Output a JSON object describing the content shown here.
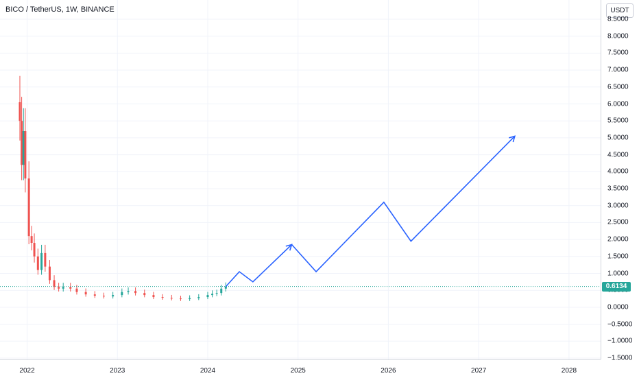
{
  "title": "BICO / TetherUS, 1W, BINANCE",
  "currency_button": "USDT",
  "last_price": "0.6134",
  "colors": {
    "up": "#26a69a",
    "down": "#ef5350",
    "projection": "#2962ff",
    "grid": "#f0f3fa",
    "price_line": "#26a69a"
  },
  "chart_data": {
    "type": "line",
    "title": "BICO / TetherUS, 1W, BINANCE",
    "ylim": [
      -1.5,
      8.5
    ],
    "y_ticks": [
      "8.5000",
      "8.0000",
      "7.5000",
      "7.0000",
      "6.5000",
      "6.0000",
      "5.5000",
      "5.0000",
      "4.5000",
      "4.0000",
      "3.5000",
      "3.0000",
      "2.5000",
      "2.0000",
      "1.5000",
      "1.0000",
      "0.5000",
      "0.0000",
      "−0.5000",
      "−1.0000",
      "−1.5000"
    ],
    "y_tick_values": [
      8.5,
      8.0,
      7.5,
      7.0,
      6.5,
      6.0,
      5.5,
      5.0,
      4.5,
      4.0,
      3.5,
      3.0,
      2.5,
      2.0,
      1.5,
      1.0,
      0.5,
      0.0,
      -0.5,
      -1.0,
      -1.5
    ],
    "x_ticks": [
      "2022",
      "2023",
      "2024",
      "2025",
      "2026",
      "2027",
      "2028"
    ],
    "x_tick_values": [
      2022.0,
      2023.0,
      2024.0,
      2025.0,
      2026.0,
      2027.0,
      2028.0
    ],
    "xlim": [
      2021.7,
      2028.35
    ],
    "last_price": 0.6134,
    "price_series": {
      "name": "",
      "x": [
        2021.92,
        2021.94,
        2021.96,
        2021.98,
        2022.02,
        2022.05,
        2022.08,
        2022.12,
        2022.16,
        2022.2,
        2022.25,
        2022.3,
        2022.35,
        2022.4,
        2022.48,
        2022.55,
        2022.65,
        2022.75,
        2022.85,
        2022.95,
        2023.05,
        2023.12,
        2023.2,
        2023.3,
        2023.4,
        2023.5,
        2023.6,
        2023.7,
        2023.8,
        2023.9,
        2024.0,
        2024.05,
        2024.1,
        2024.15,
        2024.2
      ],
      "y": [
        5.5,
        4.2,
        5.2,
        3.8,
        2.1,
        1.9,
        1.5,
        1.1,
        1.6,
        1.2,
        0.8,
        0.6,
        0.55,
        0.6,
        0.55,
        0.45,
        0.38,
        0.34,
        0.32,
        0.36,
        0.45,
        0.48,
        0.42,
        0.36,
        0.3,
        0.28,
        0.26,
        0.24,
        0.27,
        0.3,
        0.36,
        0.4,
        0.42,
        0.55,
        0.61
      ]
    },
    "projection": {
      "name": "",
      "x": [
        2024.2,
        2024.35,
        2024.5,
        2024.93,
        2025.2,
        2025.95,
        2026.25,
        2027.4
      ],
      "y": [
        0.61,
        1.05,
        0.75,
        1.85,
        1.05,
        3.1,
        1.95,
        5.05
      ]
    }
  }
}
